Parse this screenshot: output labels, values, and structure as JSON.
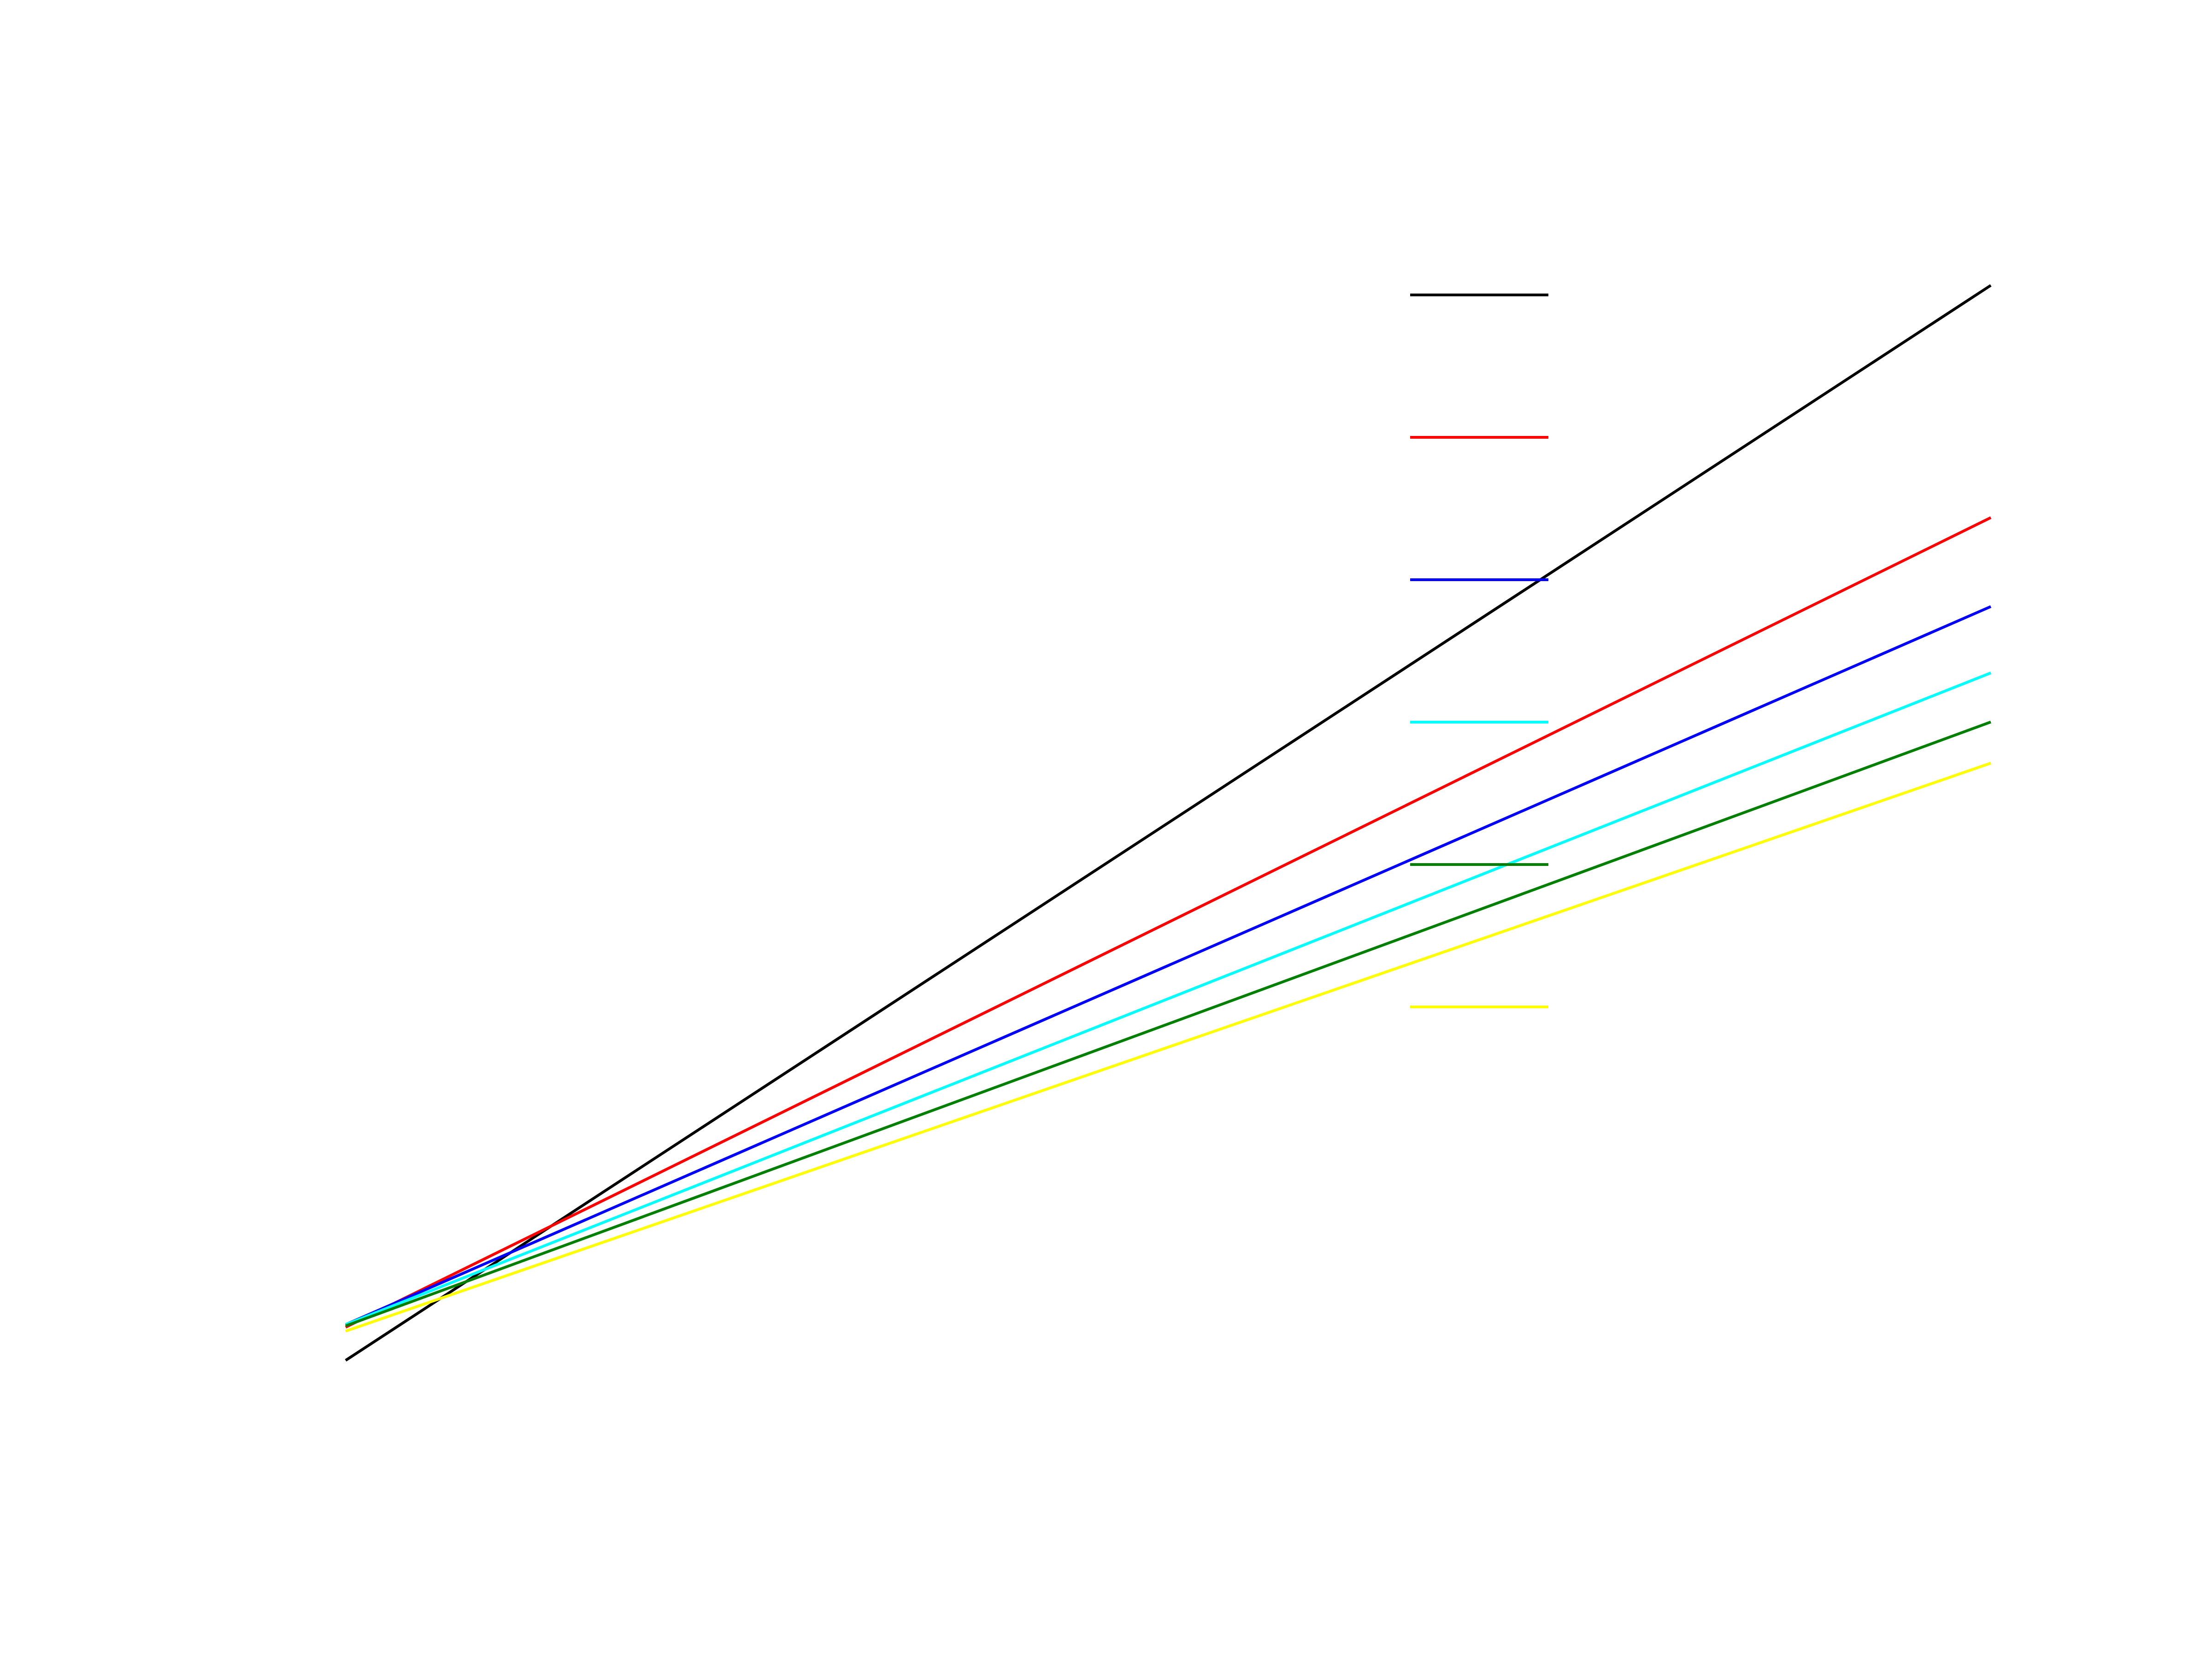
{
  "chart_data": {
    "type": "line",
    "x": [
      0,
      1
    ],
    "xlim": [
      0,
      1
    ],
    "ylim": [
      0,
      1
    ],
    "grid": false,
    "legend_position": "top-right",
    "series": [
      {
        "color": "#000000",
        "values": [
          0.1,
          0.91
        ]
      },
      {
        "color": "#ff0000",
        "values": [
          0.125,
          0.735
        ]
      },
      {
        "color": "#0000ff",
        "values": [
          0.127,
          0.668
        ]
      },
      {
        "color": "#00ffff",
        "values": [
          0.127,
          0.618
        ]
      },
      {
        "color": "#007f00",
        "values": [
          0.126,
          0.581
        ]
      },
      {
        "color": "#ffff00",
        "values": [
          0.122,
          0.55
        ]
      }
    ]
  }
}
